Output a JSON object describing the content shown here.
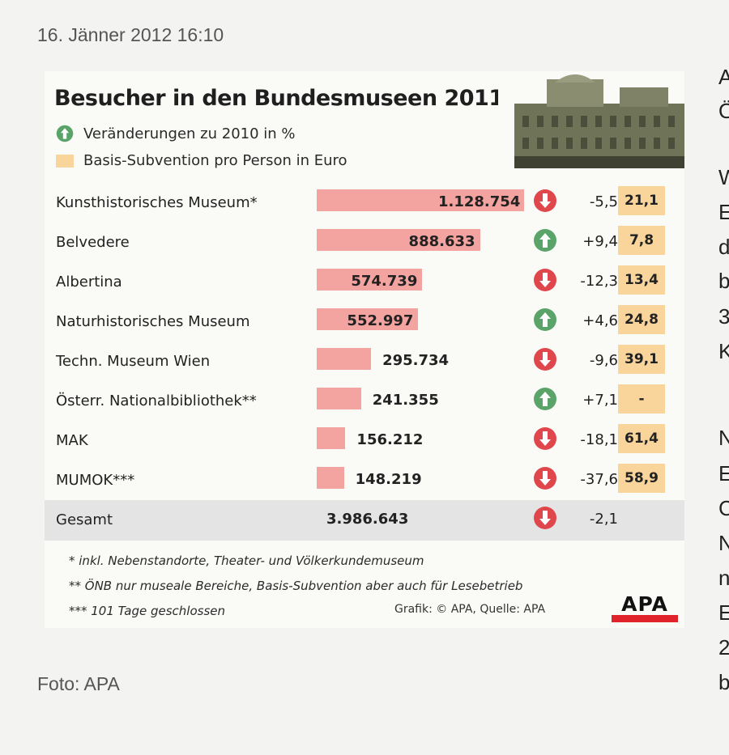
{
  "article": {
    "dateline": "16. Jänner 2012 16:10",
    "photo_credit": "Foto: APA",
    "side_column_letters": [
      "A",
      "Ö",
      "W",
      "E",
      "d",
      "b",
      "3",
      "K",
      "N",
      "E",
      "C",
      "N",
      "n",
      "E",
      "2",
      "b"
    ]
  },
  "graphic": {
    "title": "Besucher in den Bundesmuseen 2011",
    "legend_change": "Veränderungen zu 2010 in %",
    "legend_subsidy": "Basis-Subvention pro Person in Euro",
    "footnotes": [
      "* inkl. Nebenstandorte, Theater- und Völkerkundemuseum",
      "** ÖNB nur museale Bereiche, Basis-Subvention aber auch für Lesebetrieb",
      "*** 101 Tage geschlossen"
    ],
    "credit": "Grafik: © APA, Quelle: APA",
    "logo_text": "APA",
    "colors": {
      "bar": "#f3a4a0",
      "subsidy_bg": "#f9d49b",
      "arrow_up": "#5aa469",
      "arrow_down": "#e0474c",
      "total_row_bg": "#e4e4e4"
    }
  },
  "chart_data": {
    "type": "bar",
    "title": "Besucher in den Bundesmuseen 2011",
    "categories": [
      "Kunsthistorisches Museum*",
      "Belvedere",
      "Albertina",
      "Naturhistorisches Museum",
      "Techn. Museum Wien",
      "Österr. Nationalbibliothek**",
      "MAK",
      "MUMOK***"
    ],
    "values": [
      1128754,
      888633,
      574739,
      552997,
      295734,
      241355,
      156212,
      148219
    ],
    "value_labels": [
      "1.128.754",
      "888.633",
      "574.739",
      "552.997",
      "295.734",
      "241.355",
      "156.212",
      "148.219"
    ],
    "change_pct": [
      "-5,5",
      "+9,4",
      "-12,3",
      "+4,6",
      "-9,6",
      "+7,1",
      "-18,1",
      "-37,6"
    ],
    "change_direction": [
      "down",
      "up",
      "down",
      "up",
      "down",
      "up",
      "down",
      "down"
    ],
    "subsidy_eur": [
      "21,1",
      "7,8",
      "13,4",
      "24,8",
      "39,1",
      "-",
      "61,4",
      "58,9"
    ],
    "total": {
      "label": "Gesamt",
      "value": 3986643,
      "value_label": "3.986.643",
      "change_pct": "-2,1",
      "change_direction": "down"
    }
  }
}
